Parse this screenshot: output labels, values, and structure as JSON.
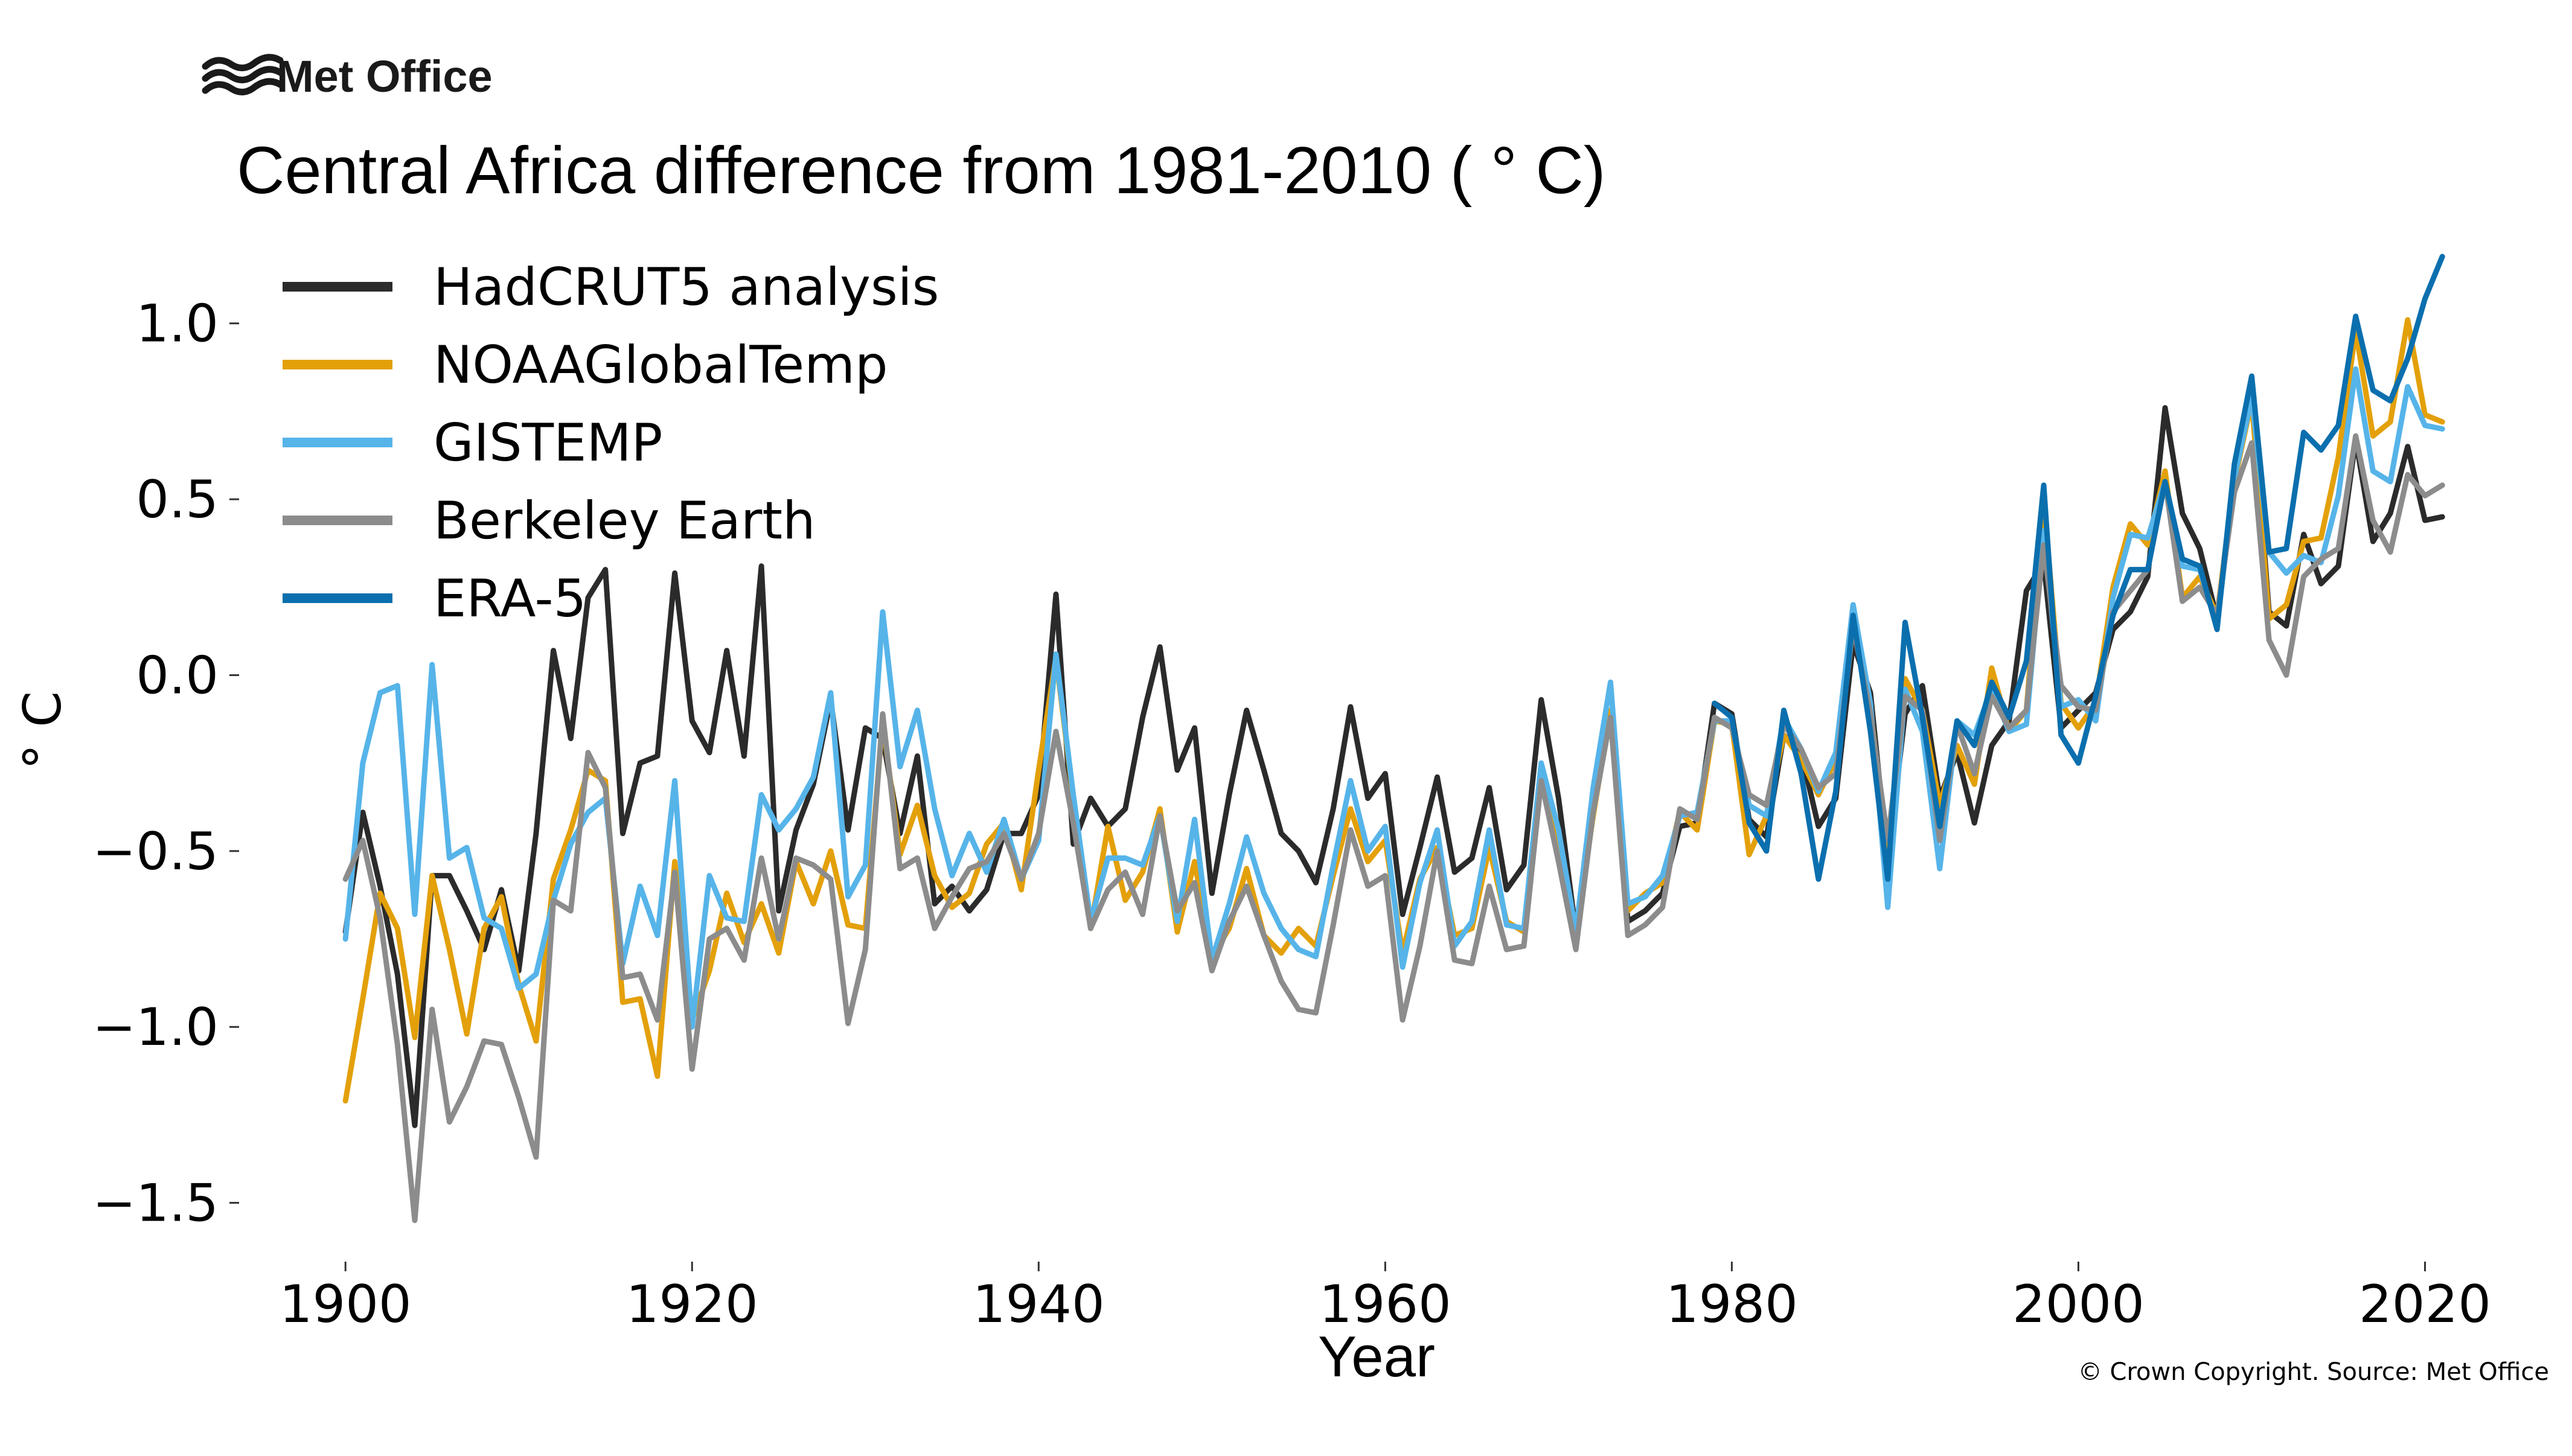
{
  "branding": {
    "logo_text": "Met Office",
    "copyright": "© Crown Copyright. Source: Met Office"
  },
  "chart_data": {
    "type": "line",
    "title": "Central Africa difference from 1981-2010 ( $^\\circ$C)",
    "title_display": "Central Africa difference from 1981-2010 ( ° C)",
    "xlabel": "Year",
    "ylabel": "° C",
    "xlim": [
      1894,
      2025
    ],
    "ylim": [
      -1.65,
      1.25
    ],
    "xticks": [
      1900,
      1920,
      1940,
      1960,
      1980,
      2000,
      2020
    ],
    "xtick_labels": [
      "1900",
      "1920",
      "1940",
      "1960",
      "1980",
      "2000",
      "2020"
    ],
    "yticks": [
      1.0,
      0.5,
      0.0,
      -0.5,
      -1.0,
      -1.5
    ],
    "ytick_labels": [
      "1.0",
      "0.5",
      "0.0",
      "−0.5",
      "−1.0",
      "−1.5"
    ],
    "grid": false,
    "legend_position": "top-left",
    "series": [
      {
        "name": "HadCRUT5 analysis",
        "color": "#2b2b2b",
        "x": [
          1900,
          1901,
          1902,
          1903,
          1904,
          1905,
          1906,
          1907,
          1908,
          1909,
          1910,
          1911,
          1912,
          1913,
          1914,
          1915,
          1916,
          1917,
          1918,
          1919,
          1920,
          1921,
          1922,
          1923,
          1924,
          1925,
          1926,
          1927,
          1928,
          1929,
          1930,
          1931,
          1932,
          1933,
          1934,
          1935,
          1936,
          1937,
          1938,
          1939,
          1940,
          1941,
          1942,
          1943,
          1944,
          1945,
          1946,
          1947,
          1948,
          1949,
          1950,
          1951,
          1952,
          1953,
          1954,
          1955,
          1956,
          1957,
          1958,
          1959,
          1960,
          1961,
          1962,
          1963,
          1964,
          1965,
          1966,
          1967,
          1968,
          1969,
          1970,
          1971,
          1972,
          1973,
          1974,
          1975,
          1976,
          1977,
          1978,
          1979,
          1980,
          1981,
          1982,
          1983,
          1984,
          1985,
          1986,
          1987,
          1988,
          1989,
          1990,
          1991,
          1992,
          1993,
          1994,
          1995,
          1996,
          1997,
          1998,
          1999,
          2000,
          2001,
          2002,
          2003,
          2004,
          2005,
          2006,
          2007,
          2008,
          2009,
          2010,
          2011,
          2012,
          2013,
          2014,
          2015,
          2016,
          2017,
          2018,
          2019,
          2020,
          2021
        ],
        "values": [
          -0.73,
          -0.39,
          -0.6,
          -0.85,
          -1.28,
          -0.57,
          -0.57,
          -0.67,
          -0.78,
          -0.61,
          -0.84,
          -0.45,
          0.07,
          -0.18,
          0.22,
          0.3,
          -0.45,
          -0.25,
          -0.23,
          0.29,
          -0.13,
          -0.22,
          0.07,
          -0.23,
          0.31,
          -0.67,
          -0.44,
          -0.31,
          -0.07,
          -0.44,
          -0.15,
          -0.18,
          -0.45,
          -0.23,
          -0.65,
          -0.6,
          -0.67,
          -0.61,
          -0.45,
          -0.45,
          -0.34,
          0.23,
          -0.48,
          -0.35,
          -0.43,
          -0.38,
          -0.12,
          0.08,
          -0.27,
          -0.15,
          -0.62,
          -0.34,
          -0.1,
          -0.27,
          -0.45,
          -0.5,
          -0.59,
          -0.38,
          -0.09,
          -0.35,
          -0.28,
          -0.68,
          -0.49,
          -0.29,
          -0.56,
          -0.52,
          -0.32,
          -0.61,
          -0.54,
          -0.07,
          -0.35,
          -0.73,
          -0.37,
          -0.12,
          -0.7,
          -0.67,
          -0.62,
          -0.43,
          -0.42,
          -0.08,
          -0.11,
          -0.41,
          -0.46,
          -0.17,
          -0.22,
          -0.43,
          -0.35,
          0.09,
          -0.05,
          -0.53,
          -0.11,
          -0.03,
          -0.35,
          -0.22,
          -0.42,
          -0.2,
          -0.13,
          0.24,
          0.32,
          -0.15,
          -0.1,
          -0.05,
          0.13,
          0.18,
          0.28,
          0.76,
          0.46,
          0.36,
          0.16,
          0.57,
          0.82,
          0.18,
          0.14,
          0.4,
          0.26,
          0.31,
          0.67,
          0.38,
          0.46,
          0.65,
          0.44,
          0.45
        ]
      },
      {
        "name": "NOAAGlobalTemp",
        "color": "#e3a00a",
        "x": [
          1900,
          1901,
          1902,
          1903,
          1904,
          1905,
          1906,
          1907,
          1908,
          1909,
          1910,
          1911,
          1912,
          1913,
          1914,
          1915,
          1916,
          1917,
          1918,
          1919,
          1920,
          1921,
          1922,
          1923,
          1924,
          1925,
          1926,
          1927,
          1928,
          1929,
          1930,
          1931,
          1932,
          1933,
          1934,
          1935,
          1936,
          1937,
          1938,
          1939,
          1940,
          1941,
          1942,
          1943,
          1944,
          1945,
          1946,
          1947,
          1948,
          1949,
          1950,
          1951,
          1952,
          1953,
          1954,
          1955,
          1956,
          1957,
          1958,
          1959,
          1960,
          1961,
          1962,
          1963,
          1964,
          1965,
          1966,
          1967,
          1968,
          1969,
          1970,
          1971,
          1972,
          1973,
          1974,
          1975,
          1976,
          1977,
          1978,
          1979,
          1980,
          1981,
          1982,
          1983,
          1984,
          1985,
          1986,
          1987,
          1988,
          1989,
          1990,
          1991,
          1992,
          1993,
          1994,
          1995,
          1996,
          1997,
          1998,
          1999,
          2000,
          2001,
          2002,
          2003,
          2004,
          2005,
          2006,
          2007,
          2008,
          2009,
          2010,
          2011,
          2012,
          2013,
          2014,
          2015,
          2016,
          2017,
          2018,
          2019,
          2020,
          2021
        ],
        "values": [
          -1.21,
          -0.92,
          -0.62,
          -0.72,
          -1.03,
          -0.57,
          -0.78,
          -1.02,
          -0.72,
          -0.63,
          -0.88,
          -1.04,
          -0.58,
          -0.44,
          -0.27,
          -0.3,
          -0.93,
          -0.92,
          -1.14,
          -0.53,
          -0.98,
          -0.84,
          -0.62,
          -0.76,
          -0.65,
          -0.79,
          -0.53,
          -0.65,
          -0.5,
          -0.71,
          -0.72,
          -0.13,
          -0.51,
          -0.37,
          -0.57,
          -0.66,
          -0.62,
          -0.48,
          -0.42,
          -0.61,
          -0.27,
          0.05,
          -0.35,
          -0.72,
          -0.43,
          -0.64,
          -0.56,
          -0.38,
          -0.73,
          -0.53,
          -0.8,
          -0.72,
          -0.55,
          -0.74,
          -0.79,
          -0.72,
          -0.77,
          -0.57,
          -0.38,
          -0.53,
          -0.47,
          -0.79,
          -0.58,
          -0.49,
          -0.74,
          -0.72,
          -0.49,
          -0.7,
          -0.73,
          -0.28,
          -0.46,
          -0.73,
          -0.4,
          -0.1,
          -0.67,
          -0.62,
          -0.59,
          -0.39,
          -0.44,
          -0.13,
          -0.14,
          -0.51,
          -0.4,
          -0.17,
          -0.24,
          -0.34,
          -0.24,
          0.2,
          -0.1,
          -0.5,
          -0.01,
          -0.1,
          -0.37,
          -0.2,
          -0.31,
          0.02,
          -0.16,
          -0.1,
          0.5,
          -0.08,
          -0.15,
          -0.08,
          0.25,
          0.43,
          0.37,
          0.58,
          0.22,
          0.28,
          0.17,
          0.55,
          0.78,
          0.16,
          0.2,
          0.38,
          0.39,
          0.62,
          0.98,
          0.68,
          0.72,
          1.01,
          0.74,
          0.72
        ]
      },
      {
        "name": "GISTEMP",
        "color": "#56b4e9",
        "x": [
          1900,
          1901,
          1902,
          1903,
          1904,
          1905,
          1906,
          1907,
          1908,
          1909,
          1910,
          1911,
          1912,
          1913,
          1914,
          1915,
          1916,
          1917,
          1918,
          1919,
          1920,
          1921,
          1922,
          1923,
          1924,
          1925,
          1926,
          1927,
          1928,
          1929,
          1930,
          1931,
          1932,
          1933,
          1934,
          1935,
          1936,
          1937,
          1938,
          1939,
          1940,
          1941,
          1942,
          1943,
          1944,
          1945,
          1946,
          1947,
          1948,
          1949,
          1950,
          1951,
          1952,
          1953,
          1954,
          1955,
          1956,
          1957,
          1958,
          1959,
          1960,
          1961,
          1962,
          1963,
          1964,
          1965,
          1966,
          1967,
          1968,
          1969,
          1970,
          1971,
          1972,
          1973,
          1974,
          1975,
          1976,
          1977,
          1978,
          1979,
          1980,
          1981,
          1982,
          1983,
          1984,
          1985,
          1986,
          1987,
          1988,
          1989,
          1990,
          1991,
          1992,
          1993,
          1994,
          1995,
          1996,
          1997,
          1998,
          1999,
          2000,
          2001,
          2002,
          2003,
          2004,
          2005,
          2006,
          2007,
          2008,
          2009,
          2010,
          2011,
          2012,
          2013,
          2014,
          2015,
          2016,
          2017,
          2018,
          2019,
          2020,
          2021
        ],
        "values": [
          -0.75,
          -0.25,
          -0.05,
          -0.03,
          -0.68,
          0.03,
          -0.52,
          -0.49,
          -0.69,
          -0.72,
          -0.89,
          -0.85,
          -0.64,
          -0.48,
          -0.39,
          -0.35,
          -0.82,
          -0.6,
          -0.74,
          -0.3,
          -1.0,
          -0.57,
          -0.69,
          -0.7,
          -0.34,
          -0.44,
          -0.38,
          -0.29,
          -0.05,
          -0.63,
          -0.54,
          0.18,
          -0.26,
          -0.1,
          -0.38,
          -0.57,
          -0.45,
          -0.56,
          -0.41,
          -0.58,
          -0.47,
          0.06,
          -0.34,
          -0.7,
          -0.52,
          -0.52,
          -0.54,
          -0.4,
          -0.7,
          -0.41,
          -0.81,
          -0.65,
          -0.46,
          -0.62,
          -0.72,
          -0.78,
          -0.8,
          -0.54,
          -0.3,
          -0.5,
          -0.43,
          -0.83,
          -0.59,
          -0.44,
          -0.77,
          -0.7,
          -0.44,
          -0.71,
          -0.72,
          -0.25,
          -0.44,
          -0.73,
          -0.32,
          -0.02,
          -0.65,
          -0.63,
          -0.57,
          -0.4,
          -0.39,
          -0.13,
          -0.13,
          -0.37,
          -0.4,
          -0.12,
          -0.21,
          -0.33,
          -0.22,
          0.2,
          -0.08,
          -0.66,
          -0.04,
          -0.16,
          -0.55,
          -0.13,
          -0.17,
          -0.04,
          -0.16,
          -0.14,
          0.41,
          -0.09,
          -0.07,
          -0.13,
          0.22,
          0.4,
          0.39,
          0.55,
          0.31,
          0.3,
          0.14,
          0.56,
          0.79,
          0.35,
          0.29,
          0.34,
          0.32,
          0.51,
          0.87,
          0.58,
          0.55,
          0.82,
          0.71,
          0.7
        ]
      },
      {
        "name": "Berkeley Earth",
        "color": "#8c8c8c",
        "x": [
          1900,
          1901,
          1902,
          1903,
          1904,
          1905,
          1906,
          1907,
          1908,
          1909,
          1910,
          1911,
          1912,
          1913,
          1914,
          1915,
          1916,
          1917,
          1918,
          1919,
          1920,
          1921,
          1922,
          1923,
          1924,
          1925,
          1926,
          1927,
          1928,
          1929,
          1930,
          1931,
          1932,
          1933,
          1934,
          1935,
          1936,
          1937,
          1938,
          1939,
          1940,
          1941,
          1942,
          1943,
          1944,
          1945,
          1946,
          1947,
          1948,
          1949,
          1950,
          1951,
          1952,
          1953,
          1954,
          1955,
          1956,
          1957,
          1958,
          1959,
          1960,
          1961,
          1962,
          1963,
          1964,
          1965,
          1966,
          1967,
          1968,
          1969,
          1970,
          1971,
          1972,
          1973,
          1974,
          1975,
          1976,
          1977,
          1978,
          1979,
          1980,
          1981,
          1982,
          1983,
          1984,
          1985,
          1986,
          1987,
          1988,
          1989,
          1990,
          1991,
          1992,
          1993,
          1994,
          1995,
          1996,
          1997,
          1998,
          1999,
          2000,
          2001,
          2002,
          2003,
          2004,
          2005,
          2006,
          2007,
          2008,
          2009,
          2010,
          2011,
          2012,
          2013,
          2014,
          2015,
          2016,
          2017,
          2018,
          2019,
          2020,
          2021
        ],
        "values": [
          -0.58,
          -0.47,
          -0.69,
          -1.05,
          -1.55,
          -0.95,
          -1.27,
          -1.17,
          -1.04,
          -1.05,
          -1.2,
          -1.37,
          -0.64,
          -0.67,
          -0.22,
          -0.32,
          -0.86,
          -0.85,
          -0.98,
          -0.56,
          -1.12,
          -0.75,
          -0.72,
          -0.81,
          -0.52,
          -0.75,
          -0.52,
          -0.54,
          -0.58,
          -0.99,
          -0.78,
          -0.11,
          -0.55,
          -0.52,
          -0.72,
          -0.63,
          -0.55,
          -0.53,
          -0.45,
          -0.58,
          -0.45,
          -0.16,
          -0.42,
          -0.72,
          -0.61,
          -0.56,
          -0.68,
          -0.4,
          -0.67,
          -0.59,
          -0.84,
          -0.7,
          -0.6,
          -0.74,
          -0.87,
          -0.95,
          -0.96,
          -0.71,
          -0.44,
          -0.6,
          -0.57,
          -0.98,
          -0.77,
          -0.5,
          -0.81,
          -0.82,
          -0.6,
          -0.78,
          -0.77,
          -0.3,
          -0.53,
          -0.78,
          -0.39,
          -0.12,
          -0.74,
          -0.71,
          -0.66,
          -0.38,
          -0.41,
          -0.12,
          -0.15,
          -0.34,
          -0.37,
          -0.14,
          -0.21,
          -0.32,
          -0.28,
          0.14,
          -0.11,
          -0.47,
          -0.06,
          -0.1,
          -0.47,
          -0.14,
          -0.28,
          -0.06,
          -0.15,
          -0.1,
          0.37,
          -0.03,
          -0.09,
          -0.1,
          0.18,
          0.24,
          0.3,
          0.55,
          0.21,
          0.25,
          0.17,
          0.52,
          0.66,
          0.1,
          0.0,
          0.28,
          0.33,
          0.36,
          0.68,
          0.44,
          0.35,
          0.57,
          0.51,
          0.54
        ]
      },
      {
        "name": "ERA-5",
        "color": "#0b6fae",
        "x": [
          1979,
          1980,
          1981,
          1982,
          1983,
          1984,
          1985,
          1986,
          1987,
          1988,
          1989,
          1990,
          1991,
          1992,
          1993,
          1994,
          1995,
          1996,
          1997,
          1998,
          1999,
          2000,
          2001,
          2002,
          2003,
          2004,
          2005,
          2006,
          2007,
          2008,
          2009,
          2010,
          2011,
          2012,
          2013,
          2014,
          2015,
          2016,
          2017,
          2018,
          2019,
          2020,
          2021
        ],
        "values": [
          -0.08,
          -0.12,
          -0.42,
          -0.5,
          -0.1,
          -0.28,
          -0.58,
          -0.33,
          0.17,
          -0.16,
          -0.58,
          0.15,
          -0.12,
          -0.43,
          -0.13,
          -0.2,
          -0.02,
          -0.12,
          0.04,
          0.54,
          -0.17,
          -0.25,
          -0.06,
          0.17,
          0.3,
          0.3,
          0.55,
          0.33,
          0.31,
          0.13,
          0.6,
          0.85,
          0.35,
          0.36,
          0.69,
          0.64,
          0.71,
          1.02,
          0.81,
          0.78,
          0.9,
          1.07,
          1.19
        ]
      }
    ]
  }
}
